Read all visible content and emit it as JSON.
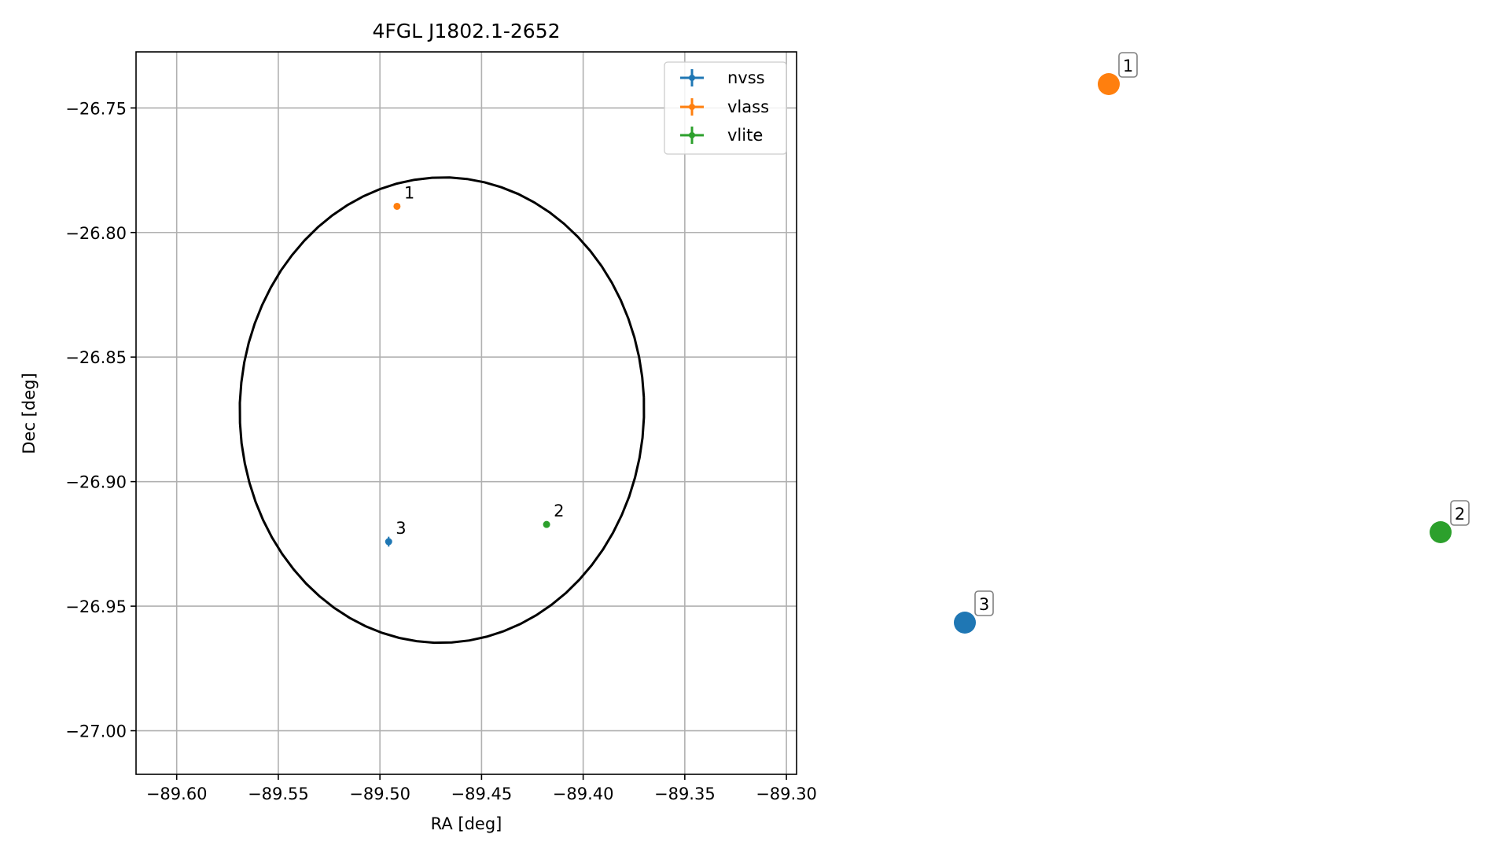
{
  "chart_data": [
    {
      "type": "scatter",
      "title": "4FGL J1802.1-2652",
      "xlabel": "RA [deg]",
      "ylabel": "Dec [deg]",
      "xlim": [
        -89.62,
        -89.295
      ],
      "ylim": [
        -27.0175,
        -26.7275
      ],
      "grid": true,
      "legend_position": "top-right",
      "x_ticks": [
        -89.6,
        -89.55,
        -89.5,
        -89.45,
        -89.4,
        -89.35,
        -89.3
      ],
      "x_tick_labels": [
        "−89.60",
        "−89.55",
        "−89.50",
        "−89.45",
        "−89.40",
        "−89.35",
        "−89.30"
      ],
      "y_ticks": [
        -26.75,
        -26.8,
        -26.85,
        -26.9,
        -26.95,
        -27.0
      ],
      "y_tick_labels": [
        "−26.75",
        "−26.80",
        "−26.85",
        "−26.90",
        "−26.95",
        "−27.00"
      ],
      "series": [
        {
          "name": "nvss",
          "color": "#1f77b4",
          "points": [
            {
              "x": -89.4957,
              "y": -26.9241,
              "label": "3",
              "yerr": 0.002,
              "xerr": 0.0008
            }
          ]
        },
        {
          "name": "vlass",
          "color": "#ff7f0e",
          "points": [
            {
              "x": -89.4916,
              "y": -26.7895,
              "label": "1",
              "yerr": 0.0002,
              "xerr": 0.0002
            }
          ]
        },
        {
          "name": "vlite",
          "color": "#2ca02c",
          "points": [
            {
              "x": -89.418,
              "y": -26.9172,
              "label": "2",
              "yerr": 0.0003,
              "xerr": 0.0003
            }
          ]
        }
      ],
      "ellipse": {
        "ra_center": -89.4695,
        "dec_center": -26.8713,
        "semi_ra": 0.0995,
        "semi_dec": 0.0934,
        "angle_deg": 3,
        "color": "#000000"
      }
    },
    {
      "type": "scatter",
      "title": "",
      "axes": false,
      "points": [
        {
          "label": "1",
          "color": "#ff7f0e"
        },
        {
          "label": "2",
          "color": "#2ca02c"
        },
        {
          "label": "3",
          "color": "#1f77b4"
        }
      ]
    }
  ]
}
